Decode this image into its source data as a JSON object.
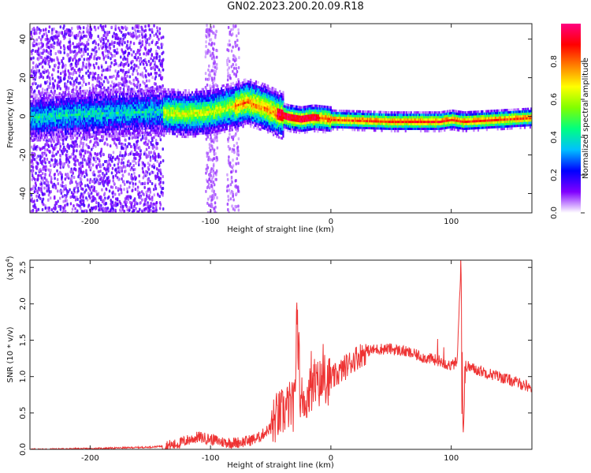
{
  "title": "GN02.2023.200.20.09.R18",
  "chart_data": [
    {
      "type": "heatmap",
      "xlabel": "Height of straight line (km)",
      "ylabel": "Frequency (Hz)",
      "xlim": [
        -250,
        167
      ],
      "ylim": [
        -50,
        48
      ],
      "x_ticks": [
        -200,
        -100,
        0,
        100
      ],
      "y_ticks": [
        -40,
        -20,
        0,
        20,
        40
      ],
      "colorbar": {
        "label": "Normalized spectral amplitude",
        "range": [
          0,
          1
        ],
        "ticks": [
          "0.0",
          "0.2",
          "0.4",
          "0.6",
          "0.8"
        ],
        "colors": [
          "#ffffff",
          "#8000ff",
          "#0000ff",
          "#00c0ff",
          "#00ff80",
          "#80ff00",
          "#ffff00",
          "#ff8000",
          "#ff0000",
          "#ff0080"
        ]
      },
      "ridge": {
        "x": [
          -250,
          -200,
          -150,
          -120,
          -100,
          -80,
          -70,
          -55,
          -45,
          -35,
          -25,
          -15,
          0,
          50,
          90,
          100,
          110,
          167
        ],
        "y": [
          0,
          2,
          3,
          2,
          3,
          6,
          8,
          5,
          2,
          0,
          -1,
          0,
          -1,
          -2,
          -2,
          -1,
          -2,
          0
        ]
      }
    },
    {
      "type": "line",
      "xlabel": "Height of straight line (km)",
      "ylabel": "SNR (10 * v/v)",
      "y_multiplier": "(x10",
      "y_multiplier_exp": "4",
      "y_multiplier_close": ")",
      "xlim": [
        -250,
        167
      ],
      "ylim": [
        0,
        2.6
      ],
      "x_ticks": [
        -200,
        -100,
        0,
        100
      ],
      "y_ticks": [
        "0.0",
        "0.5",
        "1.0",
        "1.5",
        "2.0",
        "2.5"
      ],
      "line_color": "#ee3333",
      "series": [
        {
          "x": [
            -250,
            -200,
            -150,
            -130,
            -120,
            -110,
            -100,
            -90,
            -80,
            -70,
            -60,
            -50,
            -45,
            -40,
            -35,
            -30,
            -28,
            -26,
            -20,
            -15,
            -10,
            -5,
            0,
            10,
            20,
            30,
            40,
            50,
            60,
            70,
            80,
            90,
            95,
            100,
            105,
            108,
            110,
            112,
            120,
            140,
            167
          ],
          "y": [
            0.0,
            0.01,
            0.03,
            0.06,
            0.12,
            0.17,
            0.14,
            0.1,
            0.09,
            0.11,
            0.16,
            0.3,
            0.45,
            0.5,
            0.6,
            0.58,
            2.0,
            0.7,
            0.72,
            0.85,
            0.9,
            0.95,
            0.95,
            1.1,
            1.25,
            1.35,
            1.38,
            1.38,
            1.35,
            1.3,
            1.25,
            1.22,
            1.18,
            1.15,
            1.2,
            2.6,
            0.25,
            1.15,
            1.1,
            1.0,
            0.85
          ]
        }
      ]
    }
  ]
}
